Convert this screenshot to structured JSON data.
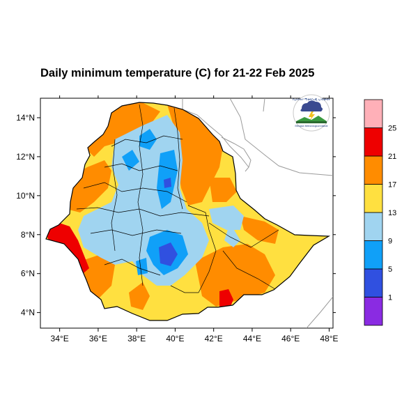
{
  "title": "Daily minimum temperature (C) for 21-22 Feb 2025",
  "x_ticks": [
    {
      "value": 34,
      "label": "34°E"
    },
    {
      "value": 36,
      "label": "36°E"
    },
    {
      "value": 38,
      "label": "38°E"
    },
    {
      "value": 40,
      "label": "40°E"
    },
    {
      "value": 42,
      "label": "42°E"
    },
    {
      "value": 44,
      "label": "44°E"
    },
    {
      "value": 46,
      "label": "46°E"
    },
    {
      "value": 48,
      "label": "48°E"
    }
  ],
  "y_ticks": [
    {
      "value": 4,
      "label": "4°N"
    },
    {
      "value": 6,
      "label": "6°N"
    },
    {
      "value": 8,
      "label": "8°N"
    },
    {
      "value": 10,
      "label": "10°N"
    },
    {
      "value": 12,
      "label": "12°N"
    },
    {
      "value": 14,
      "label": "14°N"
    }
  ],
  "extent": {
    "lon_min": 33.0,
    "lon_max": 48.2,
    "lat_min": 3.2,
    "lat_max": 15.0
  },
  "colorbar": {
    "levels": [
      "1",
      "5",
      "9",
      "13",
      "17",
      "21",
      "25"
    ],
    "colors": [
      "#8A2BE2",
      "#3050E0",
      "#10A0F8",
      "#A0D4F0",
      "#FFE040",
      "#FF8C00",
      "#EE0000",
      "#FFB0B8"
    ]
  },
  "logo": {
    "top_text": "የኢትዮጵያ ሚቲዎሮሎጂ ኢንስቲትዩት",
    "bottom_text": "Ethiopian Meteorological Institute"
  }
}
